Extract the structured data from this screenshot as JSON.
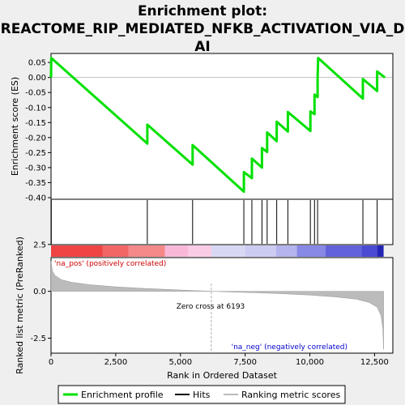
{
  "title_lines": [
    "Enrichment plot:",
    "REACTOME_RIP_MEDIATED_NFKB_ACTIVATION_VIA_D",
    "AI"
  ],
  "chart_data": {
    "type": "line",
    "n_genes": 12800,
    "es_panel": {
      "ylabel": "Enrichment score (ES)",
      "ylim": [
        -0.4,
        0.08
      ],
      "yticks": [
        0.05,
        0.0,
        -0.05,
        -0.1,
        -0.15,
        -0.2,
        -0.25,
        -0.3,
        -0.35,
        -0.4
      ],
      "ytick_labels": [
        "0.05",
        "0.00",
        "-0.05",
        "-0.10",
        "-0.15",
        "-0.20",
        "-0.25",
        "-0.30",
        "-0.35",
        "-0.40"
      ],
      "color": "#00e000",
      "hits": [
        10,
        3720,
        5470,
        7450,
        7760,
        8150,
        8350,
        8720,
        9150,
        10020,
        10180,
        10300,
        12050,
        12600
      ],
      "series": [
        {
          "x": 0,
          "y": 0.0
        },
        {
          "x": 10,
          "y": 0.065
        },
        {
          "x": 3720,
          "y": -0.22
        },
        {
          "x": 3720,
          "y": -0.157
        },
        {
          "x": 5470,
          "y": -0.29
        },
        {
          "x": 5470,
          "y": -0.225
        },
        {
          "x": 7450,
          "y": -0.38
        },
        {
          "x": 7450,
          "y": -0.315
        },
        {
          "x": 7760,
          "y": -0.335
        },
        {
          "x": 7760,
          "y": -0.27
        },
        {
          "x": 8150,
          "y": -0.3
        },
        {
          "x": 8150,
          "y": -0.235
        },
        {
          "x": 8350,
          "y": -0.248
        },
        {
          "x": 8350,
          "y": -0.183
        },
        {
          "x": 8720,
          "y": -0.212
        },
        {
          "x": 8720,
          "y": -0.147
        },
        {
          "x": 9150,
          "y": -0.18
        },
        {
          "x": 9150,
          "y": -0.115
        },
        {
          "x": 10020,
          "y": -0.178
        },
        {
          "x": 10020,
          "y": -0.113
        },
        {
          "x": 10180,
          "y": -0.122
        },
        {
          "x": 10180,
          "y": -0.057
        },
        {
          "x": 10300,
          "y": -0.065
        },
        {
          "x": 10300,
          "y": 0.0
        },
        {
          "x": 10320,
          "y": 0.065
        },
        {
          "x": 12050,
          "y": -0.07
        },
        {
          "x": 12050,
          "y": -0.005
        },
        {
          "x": 12600,
          "y": -0.045
        },
        {
          "x": 12600,
          "y": 0.02
        },
        {
          "x": 12900,
          "y": 0.0
        }
      ]
    },
    "rank_panel": {
      "ylabel": "Ranked list metric (PreRanked)",
      "xlabel": "Rank in Ordered Dataset",
      "ylim": [
        -3.3,
        1.8
      ],
      "yticks": [
        2.5,
        0.0,
        -2.5
      ],
      "ytick_labels": [
        "2.5",
        "0.0",
        "-2.5"
      ],
      "xticks": [
        0,
        2500,
        5000,
        7500,
        10000,
        12500
      ],
      "xtick_labels": [
        "0",
        "2,500",
        "5,000",
        "7,500",
        "10,000",
        "12,500"
      ],
      "zero_cross": 6193,
      "profile": [
        {
          "x": 0,
          "y": 1.6
        },
        {
          "x": 50,
          "y": 1.1
        },
        {
          "x": 150,
          "y": 0.85
        },
        {
          "x": 400,
          "y": 0.62
        },
        {
          "x": 800,
          "y": 0.48
        },
        {
          "x": 1500,
          "y": 0.35
        },
        {
          "x": 2500,
          "y": 0.24
        },
        {
          "x": 3500,
          "y": 0.16
        },
        {
          "x": 4500,
          "y": 0.1
        },
        {
          "x": 5500,
          "y": 0.04
        },
        {
          "x": 6193,
          "y": 0.0
        },
        {
          "x": 7000,
          "y": -0.04
        },
        {
          "x": 8000,
          "y": -0.08
        },
        {
          "x": 9000,
          "y": -0.13
        },
        {
          "x": 10000,
          "y": -0.2
        },
        {
          "x": 11000,
          "y": -0.3
        },
        {
          "x": 11800,
          "y": -0.42
        },
        {
          "x": 12300,
          "y": -0.6
        },
        {
          "x": 12600,
          "y": -0.85
        },
        {
          "x": 12750,
          "y": -1.3
        },
        {
          "x": 12820,
          "y": -2.0
        },
        {
          "x": 12850,
          "y": -3.1
        }
      ]
    },
    "annotations": {
      "pos_label": "'na_pos' (positively correlated)",
      "neg_label": "'na_neg' (negatively correlated)",
      "zero_cross_label": "Zero cross at 6193",
      "pos_color": "#cc0000",
      "neg_color": "#0000cc"
    },
    "legend": {
      "placement": "bottom",
      "items": [
        {
          "label": "Enrichment profile",
          "color": "#00e000"
        },
        {
          "label": "Hits",
          "color": "#000000"
        },
        {
          "label": "Ranking metric scores",
          "color": "#bbbbbb"
        }
      ]
    }
  }
}
